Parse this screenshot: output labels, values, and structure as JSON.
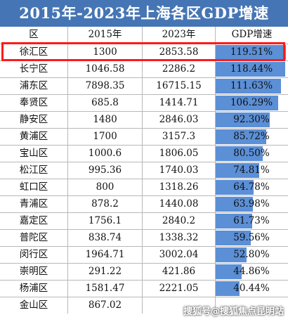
{
  "title": "2015年-2023年上海各区GDP增速",
  "table": {
    "headers": [
      "区",
      "2015年",
      "2023年",
      "GDP增速"
    ]
  },
  "chart_data": {
    "type": "table",
    "title": "2015年-2023年上海各区GDP增速",
    "columns": [
      "区",
      "2015年",
      "2023年",
      "GDP增速"
    ],
    "rows": [
      {
        "district": "徐汇区",
        "y2015": "1300",
        "y2023": "2853.58",
        "growth": "119.51%",
        "growth_value": 119.51
      },
      {
        "district": "长宁区",
        "y2015": "1046.58",
        "y2023": "2286.2",
        "growth": "118.44%",
        "growth_value": 118.44
      },
      {
        "district": "浦东区",
        "y2015": "7898.35",
        "y2023": "16715.15",
        "growth": "111.63%",
        "growth_value": 111.63
      },
      {
        "district": "奉贤区",
        "y2015": "685.8",
        "y2023": "1414.71",
        "growth": "106.29%",
        "growth_value": 106.29
      },
      {
        "district": "静安区",
        "y2015": "1480",
        "y2023": "2846.03",
        "growth": "92.30%",
        "growth_value": 92.3
      },
      {
        "district": "黄浦区",
        "y2015": "1700",
        "y2023": "3157.3",
        "growth": "85.72%",
        "growth_value": 85.72
      },
      {
        "district": "宝山区",
        "y2015": "1000.6",
        "y2023": "1806.05",
        "growth": "80.50%",
        "growth_value": 80.5
      },
      {
        "district": "松江区",
        "y2015": "995.36",
        "y2023": "1740.03",
        "growth": "74.81%",
        "growth_value": 74.81
      },
      {
        "district": "虹口区",
        "y2015": "800",
        "y2023": "1318.26",
        "growth": "64.78%",
        "growth_value": 64.78
      },
      {
        "district": "青浦区",
        "y2015": "878.2",
        "y2023": "1440.08",
        "growth": "63.98%",
        "growth_value": 63.98
      },
      {
        "district": "嘉定区",
        "y2015": "1756.1",
        "y2023": "2840.2",
        "growth": "61.73%",
        "growth_value": 61.73
      },
      {
        "district": "普陀区",
        "y2015": "838.74",
        "y2023": "1338.32",
        "growth": "59.56%",
        "growth_value": 59.56
      },
      {
        "district": "闵行区",
        "y2015": "1964.71",
        "y2023": "3002.04",
        "growth": "52.80%",
        "growth_value": 52.8
      },
      {
        "district": "崇明区",
        "y2015": "291.22",
        "y2023": "421.86",
        "growth": "44.86%",
        "growth_value": 44.86
      },
      {
        "district": "杨浦区",
        "y2015": "1581.47",
        "y2023": "2221.05",
        "growth": "40.44%",
        "growth_value": 40.44
      },
      {
        "district": "金山区",
        "y2015": "867.02",
        "y2023": "",
        "growth": "",
        "growth_value": null
      }
    ],
    "highlighted_row": "徐汇区",
    "bar_color": "#5b8fd6",
    "bar_max_value": 121
  },
  "colors": {
    "title_background": "#4575b4",
    "highlight_border": "#ff1a1a"
  },
  "watermark": "搜狐号@搜狐焦点昆明站"
}
